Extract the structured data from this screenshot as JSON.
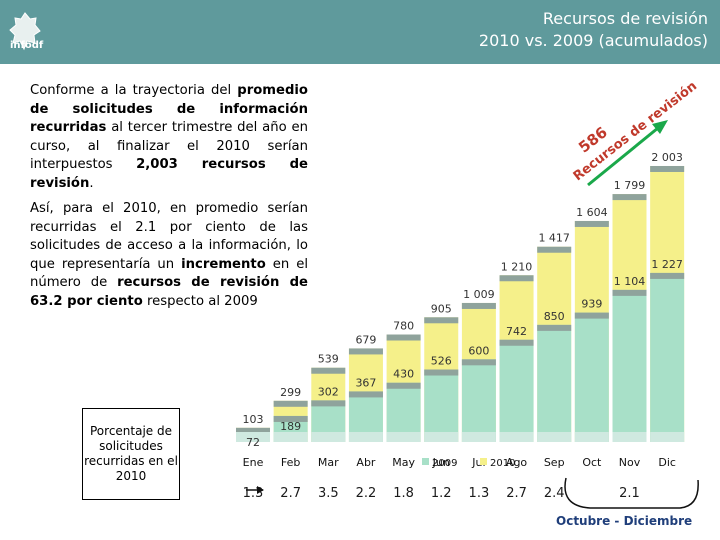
{
  "header": {
    "title_line1": "Recursos de revisión",
    "title_line2": "2010 vs. 2009 (acumulados)",
    "logo_text": "infodf"
  },
  "text": {
    "p1_a": "Conforme a la trayectoria del ",
    "p1_b": "promedio de solicitudes de información recurridas",
    "p1_c": " al tercer trimestre del año en curso, al finalizar el 2010 serían interpuestos ",
    "p1_d": "2,003 recursos de revisión",
    "p1_e": ".",
    "p2_a": "Así, para el 2010, en promedio serían recurridas el 2.1 por ciento de las solicitudes de acceso a la información, lo que representaría un ",
    "p2_b": "incremento",
    "p2_c": " en el número de ",
    "p2_d": "recursos de revisión de 63.2 por ciento",
    "p2_e": " respecto al 2009"
  },
  "pct_box": "Porcentaje de solicitudes recurridas en el 2010",
  "annotation": {
    "line1": "586",
    "line2": "Recursos de revisión"
  },
  "footer": "Octubre - Diciembre",
  "colors": {
    "header": "#5f9a9c",
    "s2009": "#a8e0c8",
    "s2010": "#f5f08a",
    "top": "#8fa39c",
    "arrow": "#1aa84a",
    "pct": "#1a1a1a"
  },
  "chart_data": {
    "type": "bar",
    "title": "Recursos de revisión 2010 vs. 2009 (acumulados)",
    "categories": [
      "Ene",
      "Feb",
      "Mar",
      "Abr",
      "May",
      "Jun",
      "Jul",
      "Ago",
      "Sep",
      "Oct",
      "Nov",
      "Dic"
    ],
    "ylim": [
      0,
      2100
    ],
    "legend": [
      "2009",
      "2010"
    ],
    "series": [
      {
        "name": "2009",
        "values": [
          72,
          189,
          302,
          367,
          430,
          526,
          600,
          742,
          850,
          939,
          1104,
          1227
        ]
      },
      {
        "name": "2010",
        "values": [
          103,
          299,
          539,
          679,
          780,
          905,
          1009,
          1210,
          1417,
          1604,
          1799,
          2003
        ]
      }
    ],
    "labels_2009": [
      "72",
      "189",
      "302",
      "367",
      "430",
      "526",
      "600",
      "742",
      "850",
      "939",
      "1 104",
      "1 227"
    ],
    "labels_2010": [
      "103",
      "299",
      "539",
      "679",
      "780",
      "905",
      "1 009",
      "1 210",
      "1 417",
      "1 604",
      "1 799",
      "2 003"
    ],
    "percent_2010": [
      "1.3",
      "2.7",
      "3.5",
      "2.2",
      "1.8",
      "1.2",
      "1.3",
      "2.7",
      "2.4",
      "",
      "2.1",
      ""
    ]
  }
}
